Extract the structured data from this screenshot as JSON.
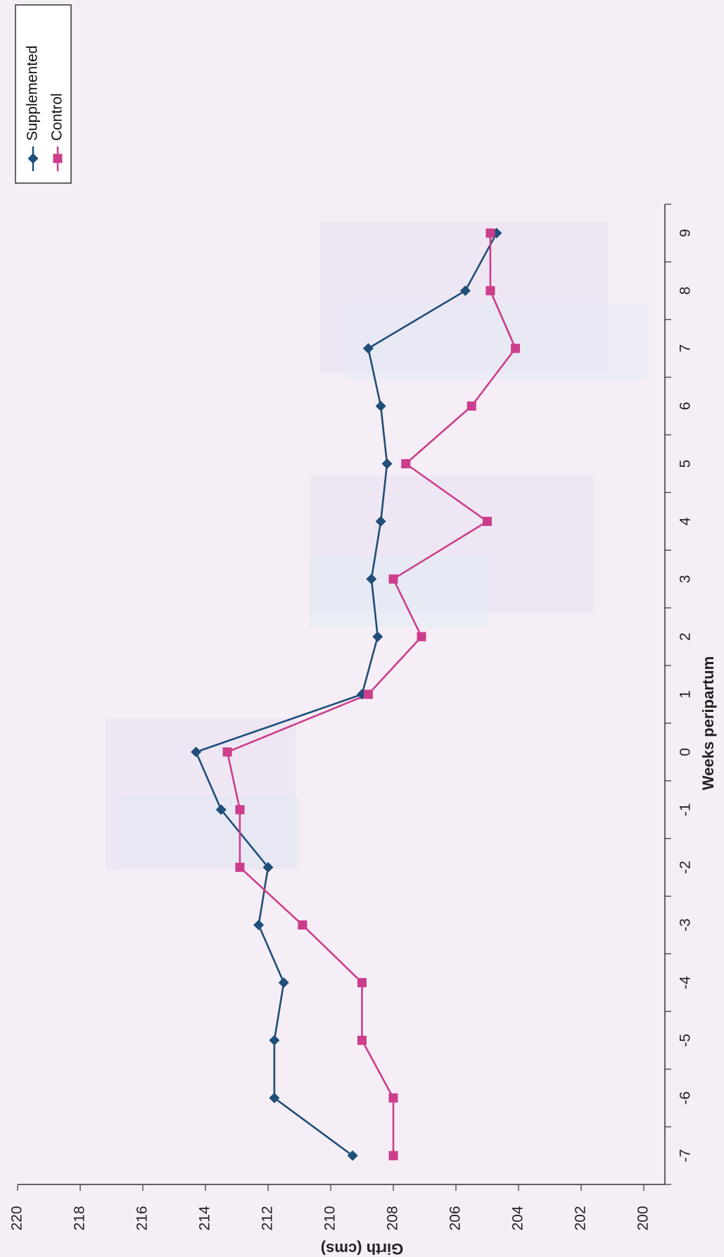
{
  "chart_data": {
    "type": "line",
    "title": "",
    "xlabel": "Weeks peripartum",
    "ylabel": "Girth (cms)",
    "x": [
      -7,
      -6,
      -5,
      -4,
      -3,
      -2,
      -1,
      0,
      1,
      2,
      3,
      4,
      5,
      6,
      7,
      8,
      9
    ],
    "xlim": [
      -7.5,
      9.5
    ],
    "ylim": [
      200,
      220
    ],
    "x_ticks": [
      -7,
      -6,
      -5,
      -4,
      -3,
      -2,
      -1,
      0,
      1,
      2,
      3,
      4,
      5,
      6,
      7,
      8,
      9
    ],
    "y_ticks": [
      200,
      202,
      204,
      206,
      208,
      210,
      212,
      214,
      216,
      218,
      220
    ],
    "grid": false,
    "orientation": "rotated 90 degrees counter-clockwise",
    "legend_position": "top-right",
    "series": [
      {
        "name": "Supplemented",
        "color": "#1f4e79",
        "marker": "diamond",
        "values": [
          209.3,
          211.8,
          211.8,
          211.5,
          212.3,
          212.0,
          213.5,
          214.3,
          209.0,
          208.5,
          208.7,
          208.4,
          208.2,
          208.4,
          208.8,
          205.7,
          204.7
        ]
      },
      {
        "name": "Control",
        "color": "#cc3d8c",
        "marker": "square",
        "values": [
          208.0,
          208.0,
          209.0,
          209.0,
          210.9,
          212.9,
          212.9,
          213.3,
          208.8,
          207.1,
          208.0,
          205.0,
          207.6,
          205.5,
          204.1,
          204.9,
          204.9
        ]
      }
    ]
  }
}
